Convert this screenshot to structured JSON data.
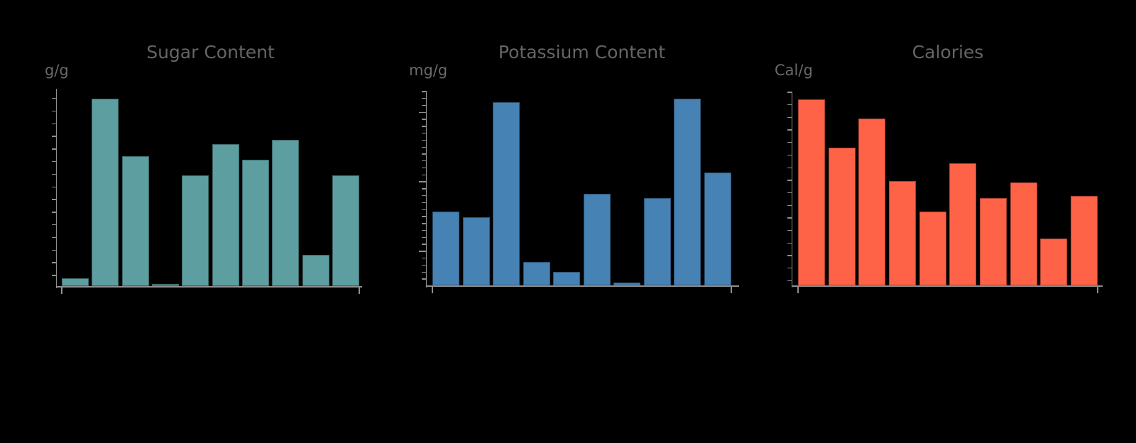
{
  "page": {
    "background": "#000000",
    "axis_color": "#8f8f8f",
    "title_color": "#656565",
    "unit_label_color": "#6a6a6a"
  },
  "note": "Three bar charts on a black background. Y-axes have unlabeled tick marks and x-axes have no visible category labels, so bar values are estimated as fractions of the full y-axis height (0 = baseline, 1 = top of axis).",
  "chart_data": [
    {
      "type": "bar",
      "title": "Sugar Content",
      "ylabel": "g/g",
      "xlabel": "",
      "bar_color": "#5d9ea0",
      "x": [
        1,
        2,
        3,
        4,
        5,
        6,
        7,
        8,
        9,
        10
      ],
      "values": [
        0.04,
        0.95,
        0.66,
        0.01,
        0.56,
        0.72,
        0.64,
        0.74,
        0.16,
        0.56
      ],
      "ylim": [
        0,
        1
      ],
      "grid": false,
      "legend": "none",
      "x_tick_labels": []
    },
    {
      "type": "bar",
      "title": "Potassium Content",
      "ylabel": "mg/g",
      "xlabel": "",
      "bar_color": "#4682b4",
      "x": [
        1,
        2,
        3,
        4,
        5,
        6,
        7,
        8,
        9,
        10
      ],
      "values": [
        0.38,
        0.35,
        0.94,
        0.12,
        0.07,
        0.47,
        0.015,
        0.45,
        0.96,
        0.58
      ],
      "ylim": [
        0,
        1
      ],
      "grid": false,
      "legend": "none",
      "x_tick_labels": []
    },
    {
      "type": "bar",
      "title": "Calories",
      "ylabel": "Cal/g",
      "xlabel": "",
      "bar_color": "#ff6347",
      "x": [
        1,
        2,
        3,
        4,
        5,
        6,
        7,
        8,
        9,
        10
      ],
      "values": [
        0.96,
        0.71,
        0.86,
        0.54,
        0.38,
        0.63,
        0.45,
        0.53,
        0.24,
        0.46
      ],
      "ylim": [
        0,
        1
      ],
      "grid": false,
      "legend": "none",
      "x_tick_labels": []
    }
  ]
}
